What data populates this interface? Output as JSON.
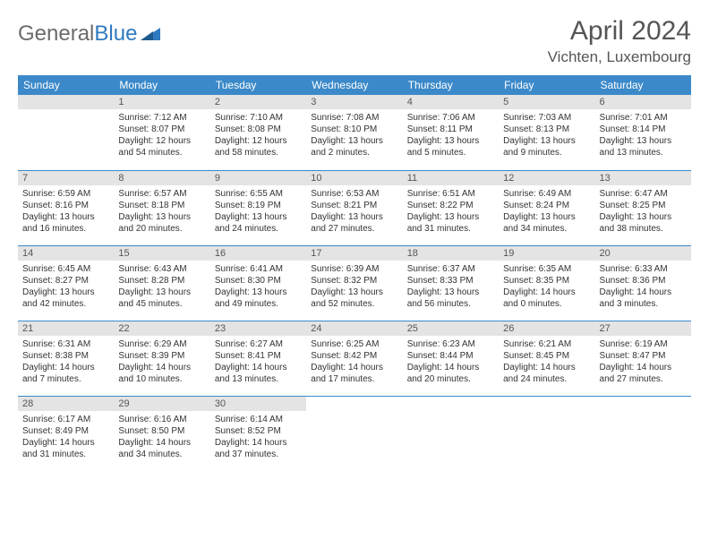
{
  "logo": {
    "text1": "General",
    "text2": "Blue"
  },
  "title": "April 2024",
  "location": "Vichten, Luxembourg",
  "colors": {
    "header_bg": "#3b89c9",
    "header_fg": "#ffffff",
    "daybar_bg": "#e4e4e4",
    "daybar_fg": "#555555",
    "text": "#333333",
    "rule": "#3b89c9",
    "logo_gray": "#6b6b6b",
    "logo_blue": "#2f7ac0"
  },
  "weekdays": [
    "Sunday",
    "Monday",
    "Tuesday",
    "Wednesday",
    "Thursday",
    "Friday",
    "Saturday"
  ],
  "weeks": [
    [
      {
        "blank": true
      },
      {
        "n": "1",
        "sr": "7:12 AM",
        "ss": "8:07 PM",
        "dl": "12 hours and 54 minutes."
      },
      {
        "n": "2",
        "sr": "7:10 AM",
        "ss": "8:08 PM",
        "dl": "12 hours and 58 minutes."
      },
      {
        "n": "3",
        "sr": "7:08 AM",
        "ss": "8:10 PM",
        "dl": "13 hours and 2 minutes."
      },
      {
        "n": "4",
        "sr": "7:06 AM",
        "ss": "8:11 PM",
        "dl": "13 hours and 5 minutes."
      },
      {
        "n": "5",
        "sr": "7:03 AM",
        "ss": "8:13 PM",
        "dl": "13 hours and 9 minutes."
      },
      {
        "n": "6",
        "sr": "7:01 AM",
        "ss": "8:14 PM",
        "dl": "13 hours and 13 minutes."
      }
    ],
    [
      {
        "n": "7",
        "sr": "6:59 AM",
        "ss": "8:16 PM",
        "dl": "13 hours and 16 minutes."
      },
      {
        "n": "8",
        "sr": "6:57 AM",
        "ss": "8:18 PM",
        "dl": "13 hours and 20 minutes."
      },
      {
        "n": "9",
        "sr": "6:55 AM",
        "ss": "8:19 PM",
        "dl": "13 hours and 24 minutes."
      },
      {
        "n": "10",
        "sr": "6:53 AM",
        "ss": "8:21 PM",
        "dl": "13 hours and 27 minutes."
      },
      {
        "n": "11",
        "sr": "6:51 AM",
        "ss": "8:22 PM",
        "dl": "13 hours and 31 minutes."
      },
      {
        "n": "12",
        "sr": "6:49 AM",
        "ss": "8:24 PM",
        "dl": "13 hours and 34 minutes."
      },
      {
        "n": "13",
        "sr": "6:47 AM",
        "ss": "8:25 PM",
        "dl": "13 hours and 38 minutes."
      }
    ],
    [
      {
        "n": "14",
        "sr": "6:45 AM",
        "ss": "8:27 PM",
        "dl": "13 hours and 42 minutes."
      },
      {
        "n": "15",
        "sr": "6:43 AM",
        "ss": "8:28 PM",
        "dl": "13 hours and 45 minutes."
      },
      {
        "n": "16",
        "sr": "6:41 AM",
        "ss": "8:30 PM",
        "dl": "13 hours and 49 minutes."
      },
      {
        "n": "17",
        "sr": "6:39 AM",
        "ss": "8:32 PM",
        "dl": "13 hours and 52 minutes."
      },
      {
        "n": "18",
        "sr": "6:37 AM",
        "ss": "8:33 PM",
        "dl": "13 hours and 56 minutes."
      },
      {
        "n": "19",
        "sr": "6:35 AM",
        "ss": "8:35 PM",
        "dl": "14 hours and 0 minutes."
      },
      {
        "n": "20",
        "sr": "6:33 AM",
        "ss": "8:36 PM",
        "dl": "14 hours and 3 minutes."
      }
    ],
    [
      {
        "n": "21",
        "sr": "6:31 AM",
        "ss": "8:38 PM",
        "dl": "14 hours and 7 minutes."
      },
      {
        "n": "22",
        "sr": "6:29 AM",
        "ss": "8:39 PM",
        "dl": "14 hours and 10 minutes."
      },
      {
        "n": "23",
        "sr": "6:27 AM",
        "ss": "8:41 PM",
        "dl": "14 hours and 13 minutes."
      },
      {
        "n": "24",
        "sr": "6:25 AM",
        "ss": "8:42 PM",
        "dl": "14 hours and 17 minutes."
      },
      {
        "n": "25",
        "sr": "6:23 AM",
        "ss": "8:44 PM",
        "dl": "14 hours and 20 minutes."
      },
      {
        "n": "26",
        "sr": "6:21 AM",
        "ss": "8:45 PM",
        "dl": "14 hours and 24 minutes."
      },
      {
        "n": "27",
        "sr": "6:19 AM",
        "ss": "8:47 PM",
        "dl": "14 hours and 27 minutes."
      }
    ],
    [
      {
        "n": "28",
        "sr": "6:17 AM",
        "ss": "8:49 PM",
        "dl": "14 hours and 31 minutes."
      },
      {
        "n": "29",
        "sr": "6:16 AM",
        "ss": "8:50 PM",
        "dl": "14 hours and 34 minutes."
      },
      {
        "n": "30",
        "sr": "6:14 AM",
        "ss": "8:52 PM",
        "dl": "14 hours and 37 minutes."
      },
      {
        "blank": true
      },
      {
        "blank": true
      },
      {
        "blank": true
      },
      {
        "blank": true
      }
    ]
  ],
  "labels": {
    "sunrise": "Sunrise: ",
    "sunset": "Sunset: ",
    "daylight": "Daylight: "
  }
}
